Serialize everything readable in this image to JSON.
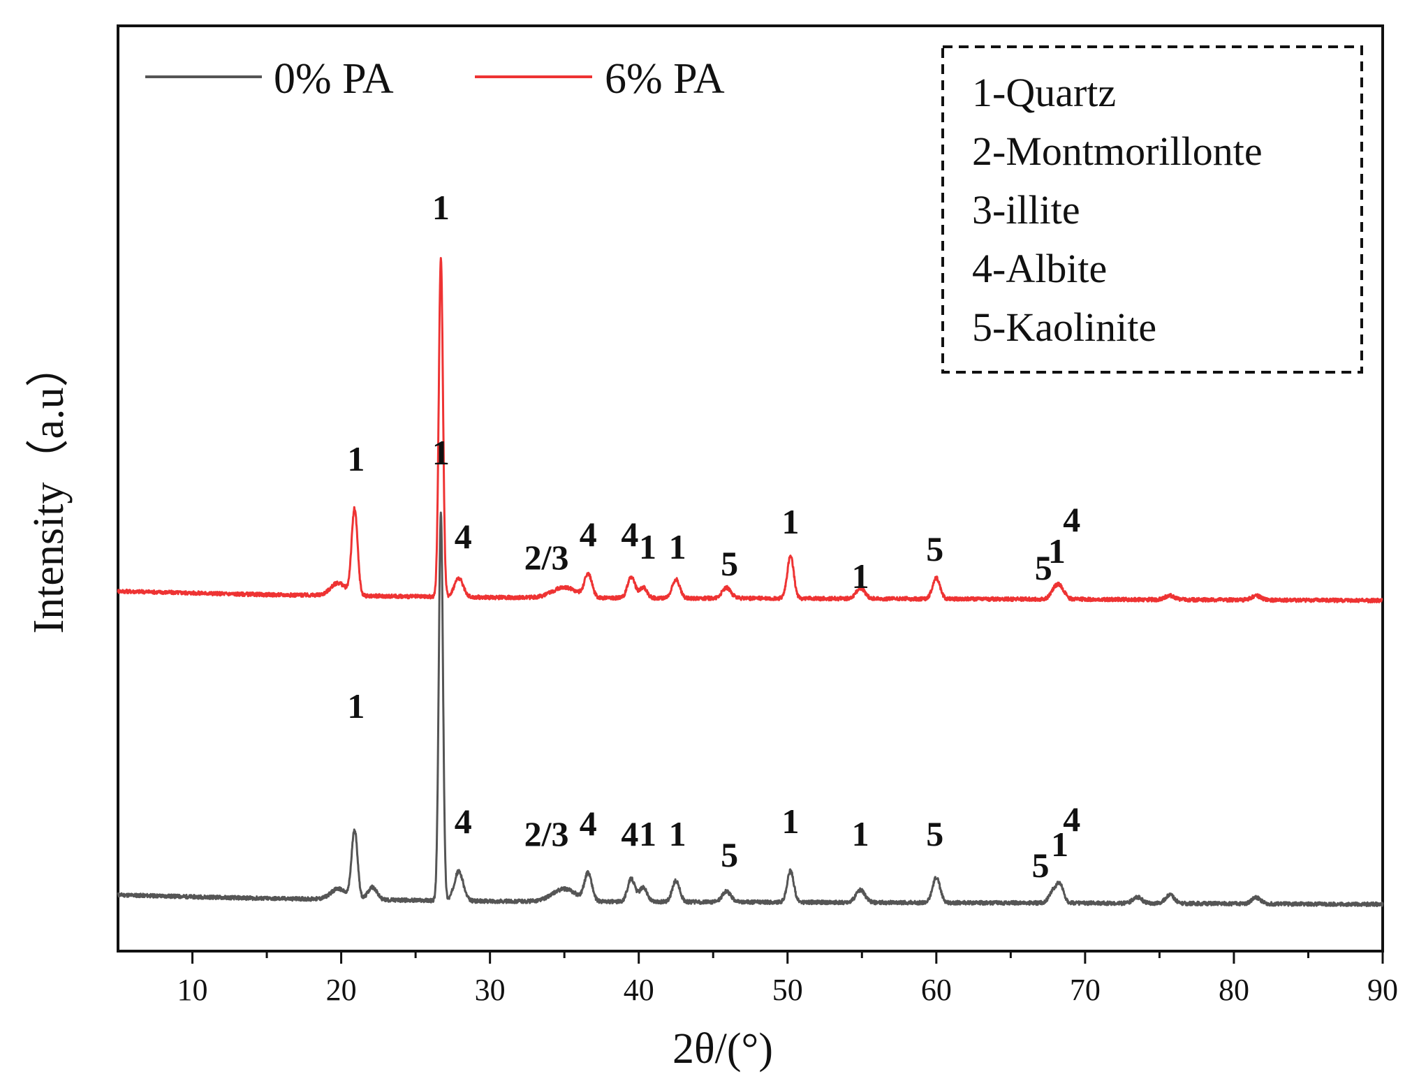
{
  "chart_data": {
    "type": "line",
    "title": "",
    "xlabel": "2θ/(°)",
    "ylabel": "Intensity（a.u）",
    "xlim": [
      5,
      90
    ],
    "xticks": [
      "10",
      "20",
      "30",
      "40",
      "50",
      "60",
      "70",
      "80",
      "90"
    ],
    "yticks": [],
    "grid": false,
    "legend_position": "top-left",
    "series": [
      {
        "name": "0% PA",
        "color": "#555555",
        "baseline": [
          [
            5,
            0.45
          ],
          [
            10,
            0.36
          ],
          [
            15,
            0.28
          ],
          [
            20,
            0.24
          ],
          [
            25,
            0.19
          ],
          [
            30,
            0.15
          ],
          [
            40,
            0.12
          ],
          [
            50,
            0.1
          ],
          [
            60,
            0.08
          ],
          [
            70,
            0.06
          ],
          [
            80,
            0.03
          ],
          [
            90,
            0.0
          ]
        ],
        "peaks": [
          {
            "x": 19.8,
            "h": 0.5,
            "w": 0.5
          },
          {
            "x": 20.9,
            "h": 3.3,
            "w": 0.2
          },
          {
            "x": 22.1,
            "h": 0.6,
            "w": 0.3
          },
          {
            "x": 26.7,
            "h": 18.5,
            "w": 0.14
          },
          {
            "x": 27.9,
            "h": 1.4,
            "w": 0.3
          },
          {
            "x": 35.0,
            "h": 0.6,
            "w": 0.8
          },
          {
            "x": 36.6,
            "h": 1.3,
            "w": 0.25
          },
          {
            "x": 39.5,
            "h": 1.1,
            "w": 0.25
          },
          {
            "x": 40.3,
            "h": 0.7,
            "w": 0.25
          },
          {
            "x": 42.5,
            "h": 1.0,
            "w": 0.25
          },
          {
            "x": 45.9,
            "h": 0.5,
            "w": 0.3
          },
          {
            "x": 50.2,
            "h": 1.5,
            "w": 0.22
          },
          {
            "x": 54.9,
            "h": 0.6,
            "w": 0.3
          },
          {
            "x": 60.0,
            "h": 1.2,
            "w": 0.25
          },
          {
            "x": 67.8,
            "h": 0.5,
            "w": 0.25
          },
          {
            "x": 68.3,
            "h": 0.9,
            "w": 0.25
          },
          {
            "x": 73.5,
            "h": 0.3,
            "w": 0.3
          },
          {
            "x": 75.7,
            "h": 0.4,
            "w": 0.3
          },
          {
            "x": 81.5,
            "h": 0.3,
            "w": 0.3
          }
        ],
        "annotations": [
          {
            "x": 21.0,
            "label": "1",
            "level": 8.9
          },
          {
            "x": 26.7,
            "label": "1",
            "level": 21.0
          },
          {
            "x": 28.2,
            "label": "4",
            "level": 3.4
          },
          {
            "x": 33.8,
            "label": "2/3",
            "level": 2.8
          },
          {
            "x": 36.6,
            "label": "4",
            "level": 3.3
          },
          {
            "x": 39.4,
            "label": "4",
            "level": 2.8
          },
          {
            "x": 40.6,
            "label": "1",
            "level": 2.8
          },
          {
            "x": 42.6,
            "label": "1",
            "level": 2.8
          },
          {
            "x": 46.1,
            "label": "5",
            "level": 1.8
          },
          {
            "x": 50.2,
            "label": "1",
            "level": 3.4
          },
          {
            "x": 54.9,
            "label": "1",
            "level": 2.8
          },
          {
            "x": 59.9,
            "label": "5",
            "level": 2.8
          },
          {
            "x": 67.0,
            "label": "5",
            "level": 1.3
          },
          {
            "x": 68.3,
            "label": "1",
            "level": 2.3
          },
          {
            "x": 69.1,
            "label": "4",
            "level": 3.5
          }
        ]
      },
      {
        "name": "6% PA",
        "color": "#ee3333",
        "baseline": [
          [
            5,
            0.45
          ],
          [
            10,
            0.36
          ],
          [
            15,
            0.28
          ],
          [
            20,
            0.24
          ],
          [
            25,
            0.19
          ],
          [
            30,
            0.15
          ],
          [
            40,
            0.12
          ],
          [
            50,
            0.1
          ],
          [
            60,
            0.08
          ],
          [
            70,
            0.06
          ],
          [
            80,
            0.03
          ],
          [
            90,
            0.0
          ]
        ],
        "peaks": [
          {
            "x": 19.8,
            "h": 0.6,
            "w": 0.5
          },
          {
            "x": 20.9,
            "h": 4.1,
            "w": 0.2
          },
          {
            "x": 26.7,
            "h": 16.2,
            "w": 0.14
          },
          {
            "x": 27.9,
            "h": 0.9,
            "w": 0.3
          },
          {
            "x": 35.0,
            "h": 0.5,
            "w": 0.8
          },
          {
            "x": 36.6,
            "h": 1.1,
            "w": 0.25
          },
          {
            "x": 39.5,
            "h": 1.0,
            "w": 0.25
          },
          {
            "x": 40.3,
            "h": 0.5,
            "w": 0.25
          },
          {
            "x": 42.5,
            "h": 0.9,
            "w": 0.25
          },
          {
            "x": 45.9,
            "h": 0.5,
            "w": 0.3
          },
          {
            "x": 50.2,
            "h": 2.0,
            "w": 0.22
          },
          {
            "x": 54.9,
            "h": 0.5,
            "w": 0.3
          },
          {
            "x": 60.0,
            "h": 1.0,
            "w": 0.25
          },
          {
            "x": 67.9,
            "h": 0.3,
            "w": 0.25
          },
          {
            "x": 68.3,
            "h": 0.6,
            "w": 0.3
          },
          {
            "x": 75.7,
            "h": 0.2,
            "w": 0.3
          },
          {
            "x": 81.5,
            "h": 0.2,
            "w": 0.3
          }
        ],
        "annotations": [
          {
            "x": 21.0,
            "label": "1",
            "level": 6.2
          },
          {
            "x": 26.7,
            "label": "1",
            "level": 18.2
          },
          {
            "x": 28.2,
            "label": "4",
            "level": 2.5
          },
          {
            "x": 33.8,
            "label": "2/3",
            "level": 1.5
          },
          {
            "x": 36.6,
            "label": "4",
            "level": 2.6
          },
          {
            "x": 39.4,
            "label": "4",
            "level": 2.6
          },
          {
            "x": 40.6,
            "label": "1",
            "level": 2.0
          },
          {
            "x": 42.6,
            "label": "1",
            "level": 2.0
          },
          {
            "x": 46.1,
            "label": "5",
            "level": 1.2
          },
          {
            "x": 50.2,
            "label": "1",
            "level": 3.2
          },
          {
            "x": 54.9,
            "label": "1",
            "level": 0.6
          },
          {
            "x": 59.9,
            "label": "5",
            "level": 1.9
          },
          {
            "x": 67.2,
            "label": "5",
            "level": 1.0
          },
          {
            "x": 68.1,
            "label": "1",
            "level": 1.8
          },
          {
            "x": 69.1,
            "label": "4",
            "level": 3.3
          }
        ]
      }
    ],
    "phase_legend": [
      "1-Quartz",
      "2-Montmorillonte",
      "3-illite",
      "4-Albite",
      "5-Kaolinite"
    ]
  }
}
